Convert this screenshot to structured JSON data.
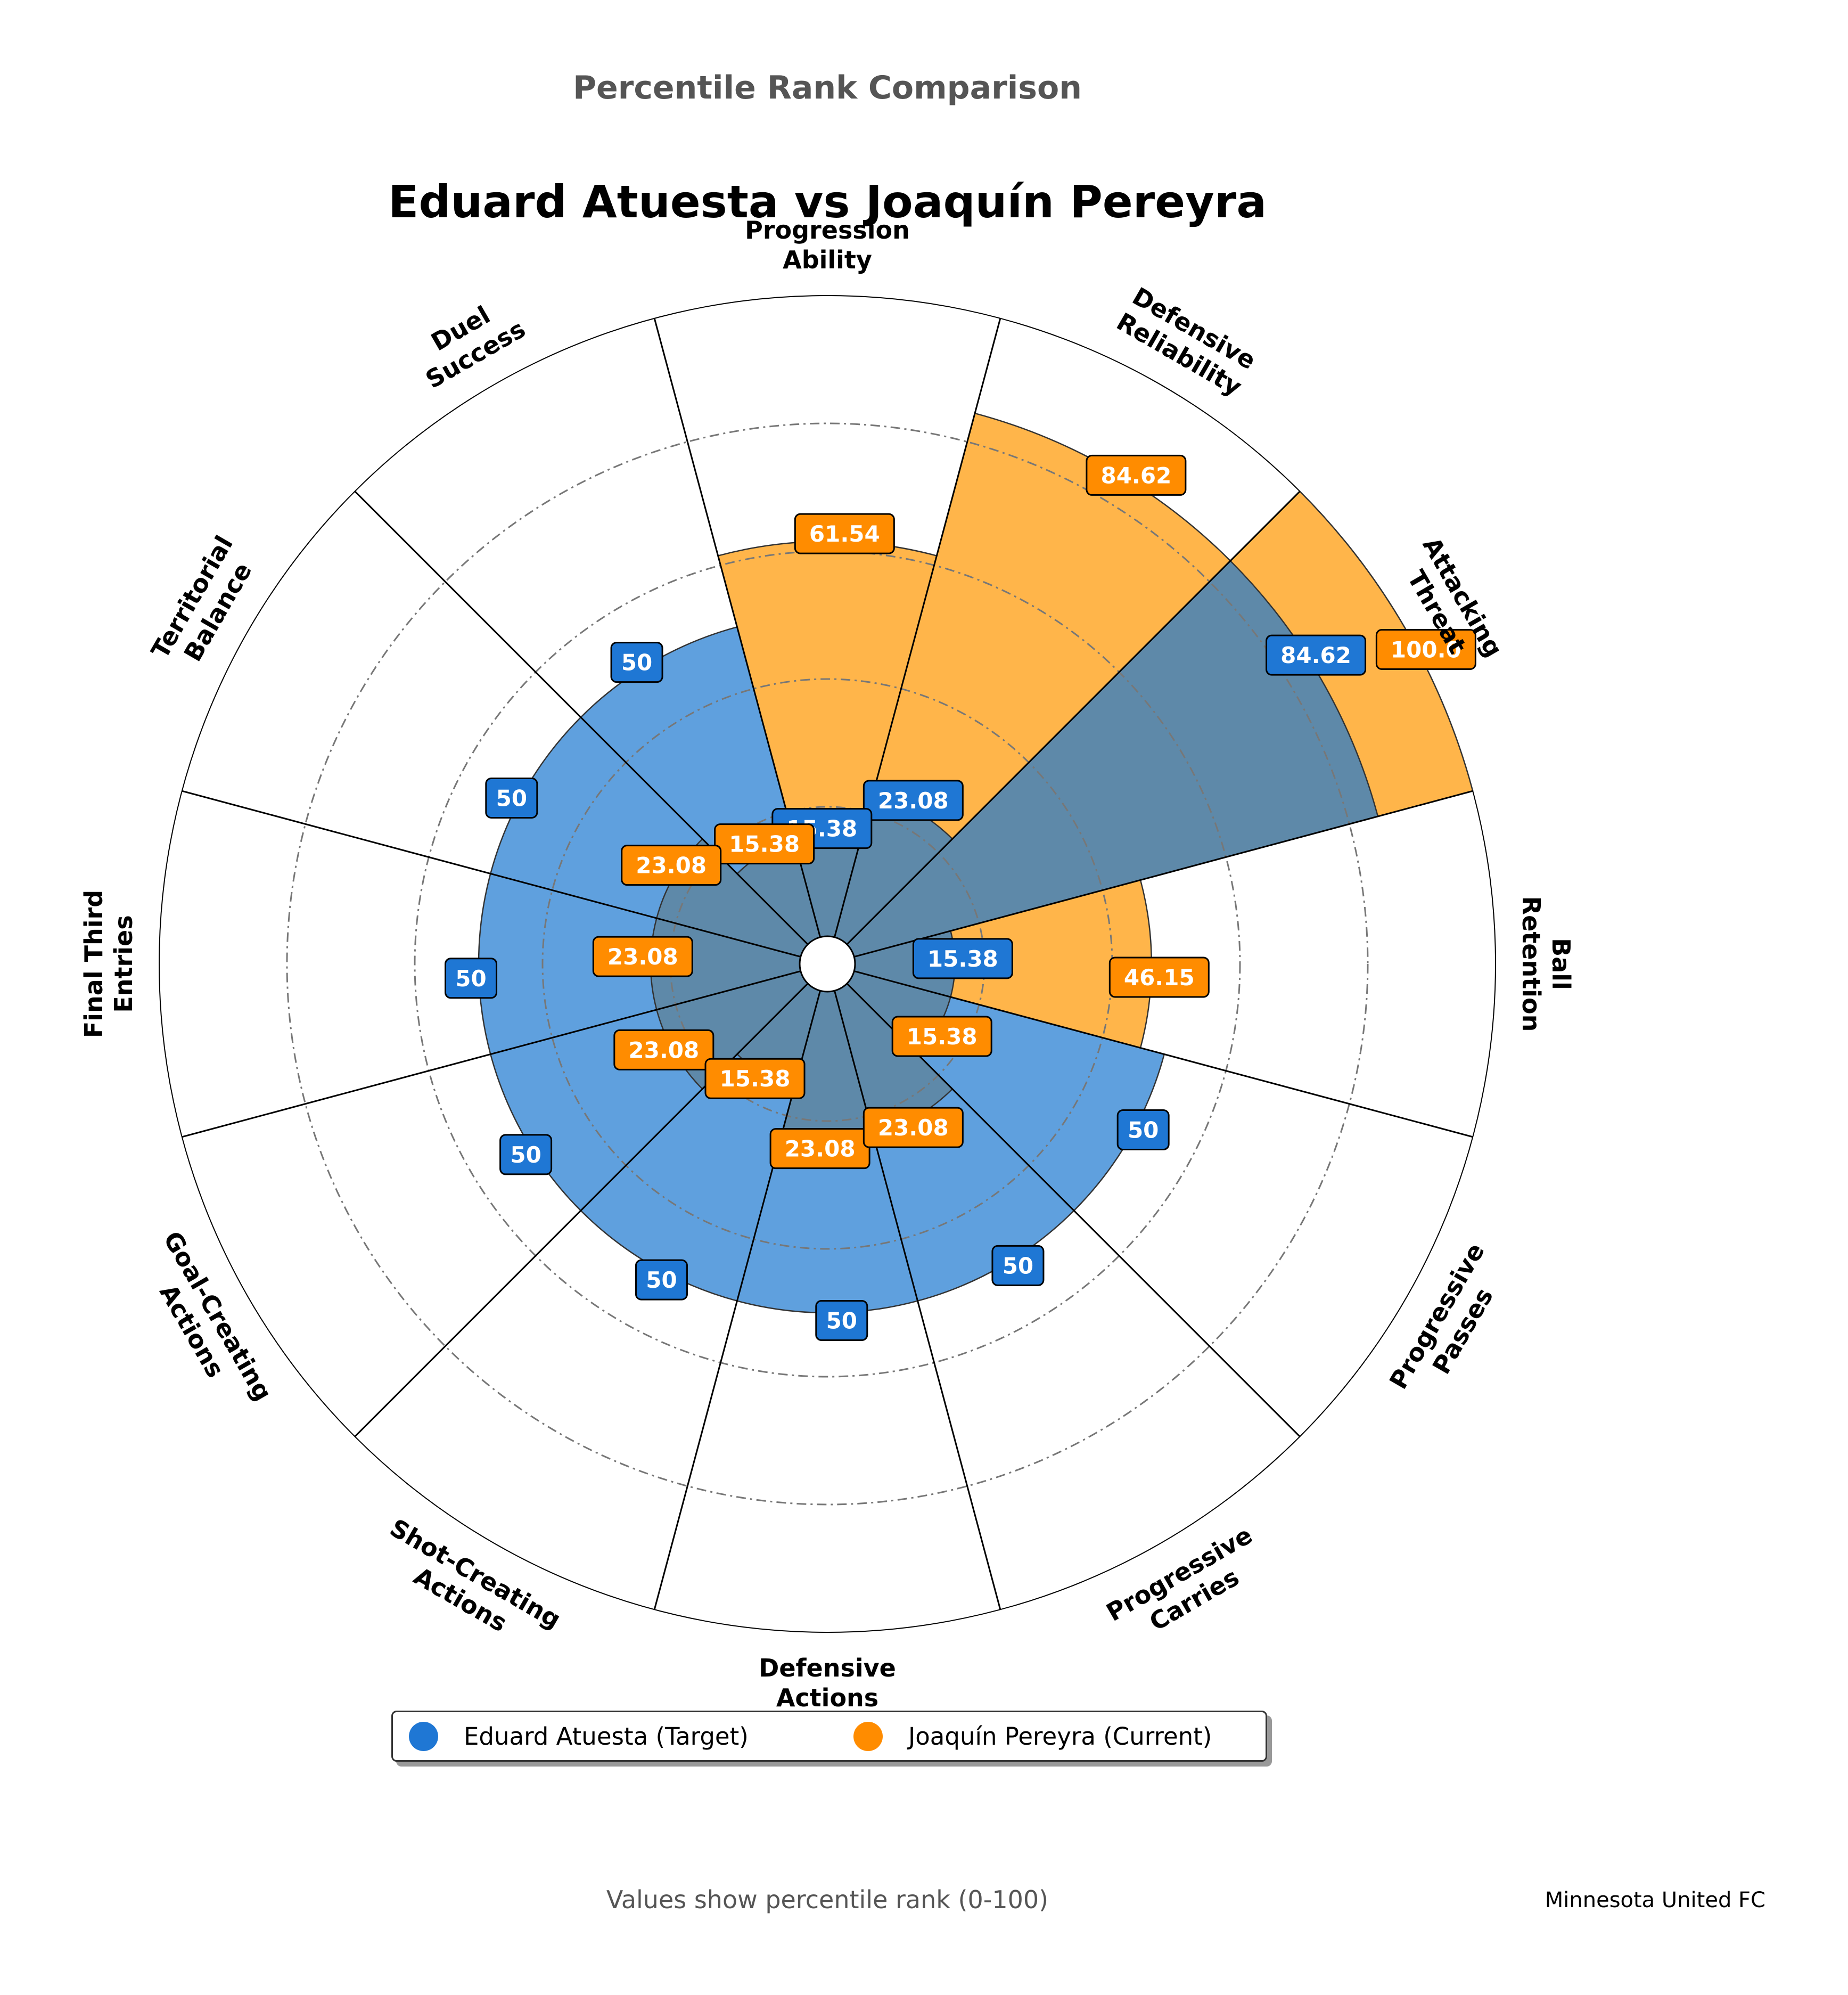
{
  "suptitle": "Percentile Rank Comparison",
  "title": "Eduard Atuesta vs Joaquín Pereyra",
  "footer_note": "Values show percentile rank (0-100)",
  "team": "Minnesota United FC",
  "legend": {
    "target_label": "Eduard Atuesta (Target)",
    "current_label": "Joaquín Pereyra (Current)"
  },
  "colors": {
    "target": "#1f77d4",
    "current": "#ff8c00",
    "target_fill": "#5fa0de",
    "current_fill": "#ffb54a",
    "overlap_fill": "#5e89a9",
    "grid": "#777777"
  },
  "chart_data": {
    "type": "polar-bar",
    "ylim": [
      0,
      100
    ],
    "grid_rings": [
      20,
      40,
      60,
      80
    ],
    "categories": [
      "Ball\nRetention",
      "Attacking\nThreat",
      "Defensive\nReliability",
      "Progression\nAbility",
      "Duel\nSuccess",
      "Territorial\nBalance",
      "Final Third\nEntries",
      "Goal-Creating\nActions",
      "Shot-Creating\nActions",
      "Defensive\nActions",
      "Progressive\nCarries",
      "Progressive\nPasses"
    ],
    "series": [
      {
        "name": "Eduard Atuesta (Target)",
        "values": [
          15.38,
          84.62,
          23.08,
          15.38,
          50,
          50,
          50,
          50,
          50,
          50,
          50,
          50
        ],
        "labels": [
          "15.38",
          "84.62",
          "23.08",
          "15.38",
          "50",
          "50",
          "50",
          "50",
          "50",
          "50",
          "50",
          "50"
        ]
      },
      {
        "name": "Joaquín Pereyra (Current)",
        "values": [
          46.15,
          100.0,
          84.62,
          61.54,
          15.38,
          23.08,
          23.08,
          23.08,
          15.38,
          23.08,
          23.08,
          15.38
        ],
        "labels": [
          "46.15",
          "100.0",
          "84.62",
          "61.54",
          "15.38",
          "23.08",
          "23.08",
          "23.08",
          "15.38",
          "23.08",
          "23.08",
          "15.38"
        ]
      }
    ]
  }
}
